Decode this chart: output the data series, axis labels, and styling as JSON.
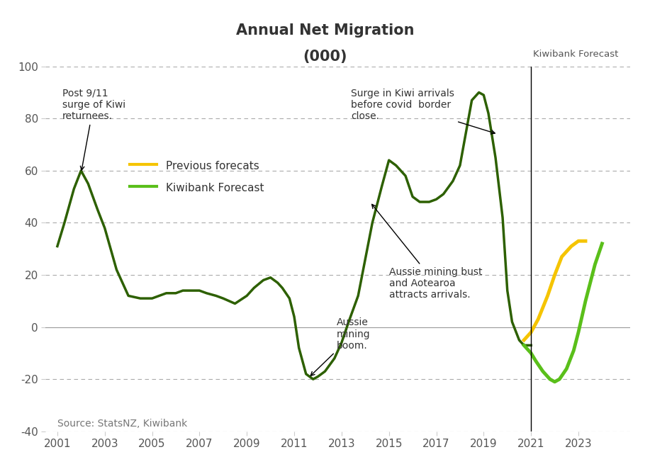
{
  "title": "Annual Net Migration\n(000)",
  "source_text": "Source: StatsNZ, Kiwibank",
  "forecast_label": "Kiwibank Forecast",
  "xlim": [
    2000.5,
    2025.2
  ],
  "ylim": [
    -40,
    100
  ],
  "yticks": [
    -40,
    -20,
    0,
    20,
    40,
    60,
    80,
    100
  ],
  "xticks": [
    2001,
    2003,
    2005,
    2007,
    2009,
    2011,
    2013,
    2015,
    2017,
    2019,
    2021,
    2023
  ],
  "forecast_line_x": 2021,
  "history_color": "#2d6000",
  "forecast_color": "#5abf1a",
  "previous_forecast_color": "#f5c400",
  "history_data": {
    "x": [
      2001,
      2001.3,
      2001.7,
      2002.0,
      2002.3,
      2002.7,
      2003.0,
      2003.5,
      2004.0,
      2004.5,
      2005.0,
      2005.3,
      2005.6,
      2006.0,
      2006.3,
      2006.7,
      2007.0,
      2007.3,
      2007.7,
      2008.0,
      2008.5,
      2009.0,
      2009.3,
      2009.7,
      2010.0,
      2010.3,
      2010.5,
      2010.8,
      2011.0,
      2011.2,
      2011.5,
      2011.8,
      2012.0,
      2012.3,
      2012.7,
      2013.0,
      2013.3,
      2013.7,
      2014.0,
      2014.3,
      2014.7,
      2015.0,
      2015.3,
      2015.7,
      2016.0,
      2016.3,
      2016.7,
      2017.0,
      2017.3,
      2017.7,
      2018.0,
      2018.3,
      2018.5,
      2018.8,
      2019.0,
      2019.2,
      2019.5,
      2019.8,
      2020.0,
      2020.2,
      2020.5,
      2020.7,
      2021.0
    ],
    "y": [
      31,
      40,
      53,
      60,
      55,
      45,
      38,
      22,
      12,
      11,
      11,
      12,
      13,
      13,
      14,
      14,
      14,
      13,
      12,
      11,
      9,
      12,
      15,
      18,
      19,
      17,
      15,
      11,
      4,
      -8,
      -18,
      -20,
      -19,
      -17,
      -12,
      -6,
      2,
      12,
      26,
      40,
      54,
      64,
      62,
      58,
      50,
      48,
      48,
      49,
      51,
      56,
      62,
      77,
      87,
      90,
      89,
      82,
      65,
      42,
      14,
      2,
      -5,
      -7,
      -7
    ]
  },
  "previous_forecast_data": {
    "x": [
      2020.7,
      2021.0,
      2021.3,
      2021.7,
      2022.0,
      2022.3,
      2022.7,
      2023.0,
      2023.3
    ],
    "y": [
      -5,
      -2,
      3,
      12,
      20,
      27,
      31,
      33,
      33
    ]
  },
  "forecast_data": {
    "x": [
      2020.7,
      2021.0,
      2021.2,
      2021.5,
      2021.8,
      2022.0,
      2022.2,
      2022.5,
      2022.8,
      2023.0,
      2023.3,
      2023.7,
      2024.0
    ],
    "y": [
      -7,
      -10,
      -13,
      -17,
      -20,
      -21,
      -20,
      -16,
      -9,
      -2,
      10,
      24,
      32
    ]
  },
  "background_color": "#ffffff",
  "grid_color": "#aaaaaa",
  "legend_entries": [
    {
      "label": "Previous forecats",
      "color": "#f5c400"
    },
    {
      "label": "Kiwibank Forecast",
      "color": "#5abf1a"
    }
  ]
}
